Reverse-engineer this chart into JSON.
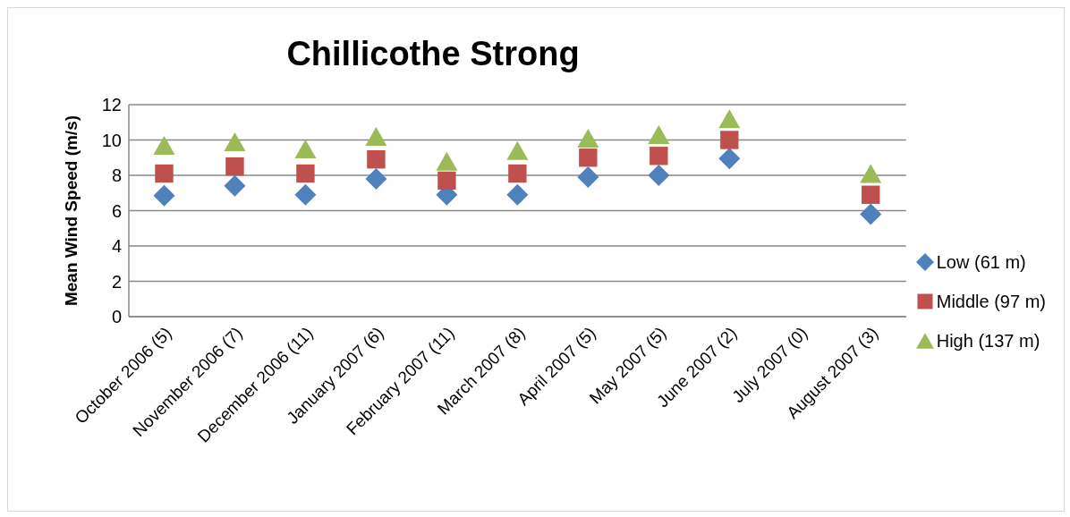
{
  "chart_data": {
    "type": "scatter",
    "title": "Chillicothe Strong",
    "ylabel": "Mean Wind Speed (m/s)",
    "categories": [
      "October 2006 (5)",
      "November 2006 (7)",
      "December 2006 (11)",
      "January 2007 (6)",
      "February 2007 (11)",
      "March 2007 (8)",
      "April 2007 (5)",
      "May 2007 (5)",
      "June 2007 (2)",
      "July 2007 (0)",
      "August 2007 (3)"
    ],
    "series": [
      {
        "name": "Low (61 m)",
        "color": "#4f81bd",
        "marker": "diamond",
        "values": [
          6.85,
          7.4,
          6.9,
          7.8,
          6.9,
          6.9,
          7.9,
          8.0,
          8.95,
          null,
          5.8
        ]
      },
      {
        "name": "Middle (97 m)",
        "color": "#c0504d",
        "marker": "square",
        "values": [
          8.1,
          8.5,
          8.1,
          8.9,
          7.7,
          8.1,
          9.0,
          9.1,
          10.0,
          null,
          6.9
        ]
      },
      {
        "name": "High (137 m)",
        "color": "#9bbb59",
        "marker": "triangle",
        "values": [
          9.7,
          9.9,
          9.5,
          10.2,
          8.8,
          9.4,
          10.1,
          10.3,
          11.2,
          null,
          8.1
        ]
      }
    ],
    "ylim": [
      0,
      12
    ],
    "yticks": [
      0,
      2,
      4,
      6,
      8,
      10,
      12
    ],
    "grid": "y",
    "legend": "right"
  }
}
